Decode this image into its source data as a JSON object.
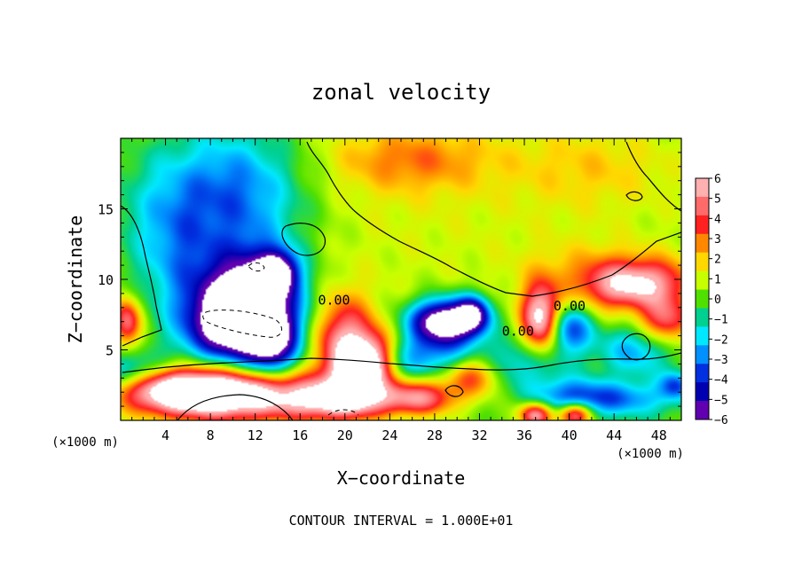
{
  "chart_data": {
    "type": "heatmap",
    "title": "zonal velocity",
    "xlabel": "X−coordinate",
    "ylabel": "Z−coordinate",
    "x_unit": "(×1000 m)",
    "z_unit": "(×1000 m)",
    "xlim": [
      0,
      50
    ],
    "ylim": [
      0,
      20
    ],
    "x_ticks": [
      "4",
      "8",
      "12",
      "16",
      "20",
      "24",
      "28",
      "32",
      "36",
      "40",
      "44",
      "48"
    ],
    "x_tick_values": [
      4,
      8,
      12,
      16,
      20,
      24,
      28,
      32,
      36,
      40,
      44,
      48
    ],
    "y_ticks": [
      "5",
      "10",
      "15"
    ],
    "y_tick_values": [
      5,
      10,
      15
    ],
    "colorbar": {
      "labels": [
        "6",
        "5",
        "4",
        "3",
        "2",
        "1",
        "0",
        "−1",
        "−2",
        "−3",
        "−4",
        "−5",
        "−6"
      ],
      "values": [
        6,
        5,
        4,
        3,
        2,
        1,
        0,
        -1,
        -2,
        -3,
        -4,
        -5,
        -6
      ],
      "colors": [
        "#ffb0b0",
        "#ff6a6a",
        "#ff2020",
        "#ff8800",
        "#ffd800",
        "#c8ff00",
        "#50e000",
        "#00d090",
        "#00e8ff",
        "#0090ff",
        "#0030e0",
        "#0000b0",
        "#6000b0"
      ],
      "over_color": "#ffffff",
      "under_color": "#ffffff"
    },
    "contour_labels": [
      {
        "text": "0.00",
        "x": 17.6,
        "z": 8.2
      },
      {
        "text": "0.00",
        "x": 34.0,
        "z": 6.0
      },
      {
        "text": "0.00",
        "x": 38.6,
        "z": 7.8
      }
    ],
    "annotation": "CONTOUR INTERVAL = 1.000E+01",
    "blobs": [
      {
        "x": 25,
        "z": 15,
        "sx": 30,
        "sy": 8,
        "a": 1.2
      },
      {
        "x": 26,
        "z": 18.5,
        "sx": 5,
        "sy": 1.6,
        "a": 2.2
      },
      {
        "x": 42,
        "z": 18,
        "sx": 5,
        "sy": 2,
        "a": 1.2
      },
      {
        "x": 10,
        "z": 16,
        "sx": 4.5,
        "sy": 3.5,
        "a": -4.5
      },
      {
        "x": 5.5,
        "z": 11,
        "sx": 2.2,
        "sy": 4,
        "a": -2.2
      },
      {
        "x": 2,
        "z": 14,
        "sx": 2.5,
        "sy": 4,
        "a": -1.5
      },
      {
        "x": 44.5,
        "z": 9.5,
        "sx": 2.5,
        "sy": 1.2,
        "a": 4
      },
      {
        "x": 48,
        "z": 9.8,
        "sx": 2.5,
        "sy": 1.2,
        "a": 3.2
      },
      {
        "x": 42,
        "z": 10.5,
        "sx": 4,
        "sy": 1.5,
        "a": 1.4
      },
      {
        "x": 11.5,
        "z": 8.5,
        "sx": 3,
        "sy": 2.4,
        "a": -9.5
      },
      {
        "x": 14,
        "z": 10.5,
        "sx": 1.2,
        "sy": 1,
        "a": -6
      },
      {
        "x": 9.5,
        "z": 6.5,
        "sx": 2.6,
        "sy": 1.8,
        "a": -5
      },
      {
        "x": 13.5,
        "z": 5.5,
        "sx": 1.6,
        "sy": 1.6,
        "a": -6
      },
      {
        "x": 29,
        "z": 7,
        "sx": 2.2,
        "sy": 1.1,
        "a": -9.5
      },
      {
        "x": 31.5,
        "z": 7.6,
        "sx": 1,
        "sy": 0.9,
        "a": -5
      },
      {
        "x": 40,
        "z": 6.5,
        "sx": 1.5,
        "sy": 1.2,
        "a": -4.5
      },
      {
        "x": 1,
        "z": 3.5,
        "sx": 2.2,
        "sy": 0.9,
        "a": -3.2
      },
      {
        "x": 27,
        "z": 4.5,
        "sx": 3,
        "sy": 1.1,
        "a": -3.2
      },
      {
        "x": 35.5,
        "z": 4,
        "sx": 3,
        "sy": 1.3,
        "a": -2.6
      },
      {
        "x": 46,
        "z": 5,
        "sx": 2.4,
        "sy": 1.3,
        "a": -3.2
      },
      {
        "x": 44.5,
        "z": 1.5,
        "sx": 3.5,
        "sy": 0.9,
        "a": -3.2
      },
      {
        "x": 40,
        "z": 1.8,
        "sx": 2.5,
        "sy": 0.9,
        "a": -2.6
      },
      {
        "x": 49.5,
        "z": 2.5,
        "sx": 1,
        "sy": 0.7,
        "a": -3.5
      },
      {
        "x": 37.5,
        "z": 7.2,
        "sx": 1.2,
        "sy": 1.7,
        "a": 7
      },
      {
        "x": 20,
        "z": 5.5,
        "sx": 1.8,
        "sy": 2.2,
        "a": 5.5
      },
      {
        "x": 21.5,
        "z": 3.5,
        "sx": 1.6,
        "sy": 1.3,
        "a": 7
      },
      {
        "x": 10,
        "z": 1.8,
        "sx": 5.5,
        "sy": 1.3,
        "a": 8
      },
      {
        "x": 5,
        "z": 2.2,
        "sx": 3.5,
        "sy": 1.1,
        "a": 5
      },
      {
        "x": 19.5,
        "z": 1.4,
        "sx": 3,
        "sy": 1,
        "a": 5.5
      },
      {
        "x": 26.5,
        "z": 1.6,
        "sx": 2.5,
        "sy": 0.9,
        "a": 5
      },
      {
        "x": 31.5,
        "z": 3.2,
        "sx": 1.8,
        "sy": 1,
        "a": 4
      },
      {
        "x": 37,
        "z": 0.4,
        "sx": 1,
        "sy": 0.6,
        "a": 6
      },
      {
        "x": 40.5,
        "z": 0.4,
        "sx": 1,
        "sy": 0.6,
        "a": 6
      },
      {
        "x": 0.6,
        "z": 7,
        "sx": 0.9,
        "sy": 1.2,
        "a": 5
      },
      {
        "x": 48.5,
        "z": 7,
        "sx": 1.6,
        "sy": 1.2,
        "a": 4.5
      },
      {
        "x": 23,
        "z": 5,
        "sx": 1.2,
        "sy": 1.2,
        "a": 3
      }
    ]
  }
}
